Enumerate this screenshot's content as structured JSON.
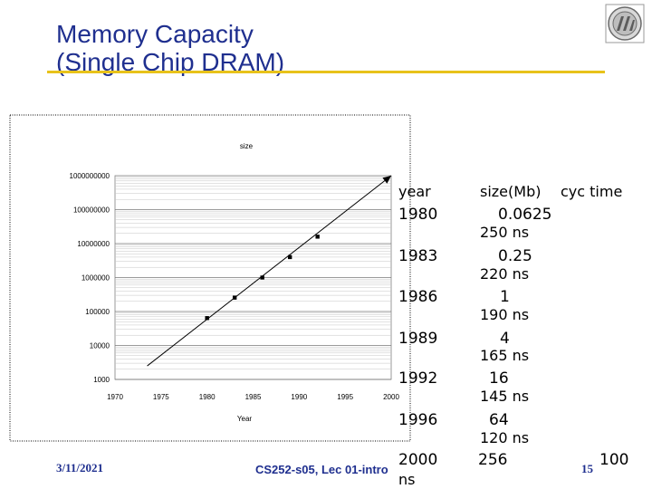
{
  "slide": {
    "title_line1": "Memory Capacity",
    "title_line2": "(Single Chip DRAM)",
    "footer_date": "3/11/2021",
    "footer_course": "CS252-s05, Lec 01-intro",
    "page_number": "15",
    "accent_color": "#e8c21a",
    "title_color": "#1f2f8f"
  },
  "table": {
    "headers": [
      "year",
      "size(Mb)",
      "cyc time"
    ],
    "rows": [
      {
        "year": "1980",
        "size": "0.0625",
        "cyc": "250 ns"
      },
      {
        "year": "1983",
        "size": "0.25",
        "cyc": "220 ns"
      },
      {
        "year": "1986",
        "size": "1",
        "cyc": "190 ns"
      },
      {
        "year": "1989",
        "size": "4",
        "cyc": "165 ns"
      },
      {
        "year": "1992",
        "size": "16",
        "cyc": "145 ns"
      },
      {
        "year": "1996",
        "size": "64",
        "cyc": "120 ns"
      },
      {
        "year": "2000",
        "size": "256",
        "cyc": "100 ns"
      }
    ]
  },
  "chart_data": {
    "type": "scatter",
    "title": "size",
    "xlabel": "Year",
    "ylabel": "",
    "y_scale": "log",
    "xlim": [
      1970,
      2000
    ],
    "ylim": [
      1000,
      1000000000
    ],
    "x_ticks": [
      "1970",
      "1975",
      "1980",
      "1985",
      "1990",
      "1995",
      "2000"
    ],
    "y_ticks": [
      "1000",
      "10000",
      "100000",
      "1000000",
      "10000000",
      "100000000",
      "1000000000"
    ],
    "grid": true,
    "points": [
      {
        "x": 1980,
        "y": 64000
      },
      {
        "x": 1983,
        "y": 256000
      },
      {
        "x": 1986,
        "y": 1000000
      },
      {
        "x": 1989,
        "y": 4000000
      },
      {
        "x": 1992,
        "y": 16000000
      }
    ],
    "trend_line": {
      "x": [
        1973.5,
        2000
      ],
      "y": [
        2500,
        1000000000
      ]
    }
  }
}
